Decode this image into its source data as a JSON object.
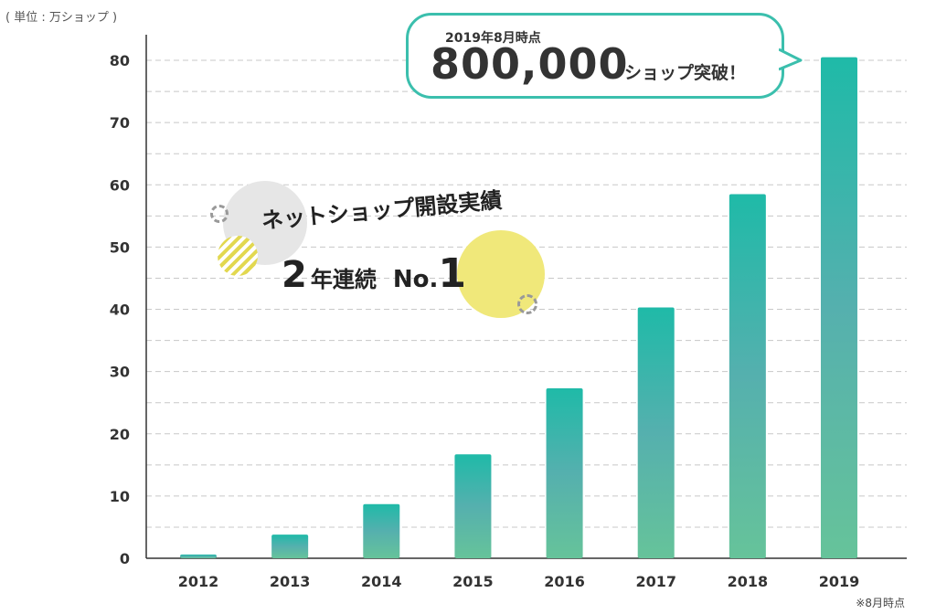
{
  "unit_label": "( 単位 : 万ショップ )",
  "footnote": "※8月時点",
  "callout": {
    "date": "2019年8月時点",
    "number": "800,000",
    "suffix": "ショップ突破！"
  },
  "badge": {
    "title": "ネットショップ開設実績",
    "count": "2",
    "years_text": "年連続",
    "no_text": "No.",
    "rank": "1"
  },
  "colors": {
    "bar_top": "#1fbaa8",
    "bar_mid": "#55b0ae",
    "bar_bottom": "#66c39a",
    "grid": "#c8c8c8",
    "axis": "#333333",
    "callout_border": "#3bbfad",
    "badge_yellow": "#f0e87a",
    "badge_gray": "#e6e6e6"
  },
  "chart_data": {
    "type": "bar",
    "categories": [
      "2012",
      "2013",
      "2014",
      "2015",
      "2016",
      "2017",
      "2018",
      "2019"
    ],
    "values": [
      0.6,
      3.8,
      8.7,
      16.7,
      27.3,
      40.3,
      58.5,
      80.5
    ],
    "title": "",
    "xlabel": "",
    "ylabel": "( 単位 : 万ショップ )",
    "ylim": [
      0,
      80
    ],
    "yticks": [
      0,
      10,
      20,
      30,
      40,
      50,
      60,
      70,
      80
    ],
    "grid": true,
    "legend": "none"
  }
}
